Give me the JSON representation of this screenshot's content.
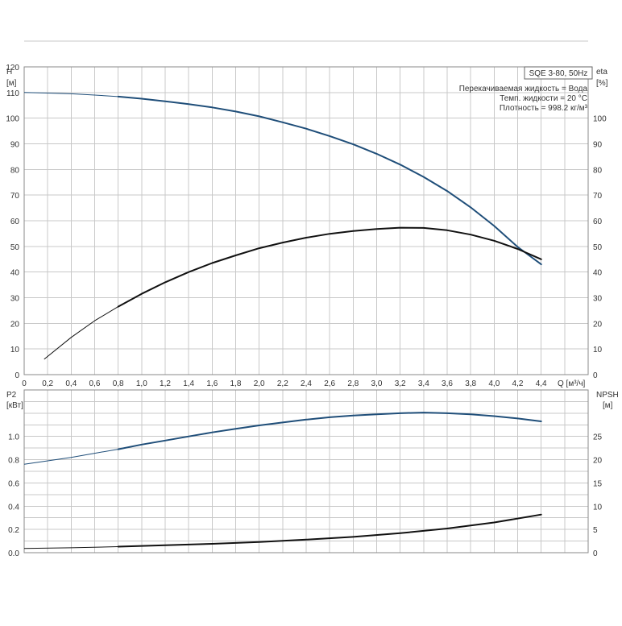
{
  "chart_data": [
    {
      "type": "line",
      "title": "SQE 3-80, 50Hz",
      "annotations": [
        "Перекачиваемая жидкость = Вода",
        "Темп. жидкости = 20 °C",
        "Плотность = 998.2 кг/м³"
      ],
      "xlabel": "Q [м³/ч]",
      "ylabel_left": [
        "H",
        "[м]"
      ],
      "ylabel_right": [
        "eta",
        "[%]"
      ],
      "xlim": [
        0,
        4.8
      ],
      "ylim_left": [
        0,
        120
      ],
      "ylim_right": [
        0,
        120
      ],
      "x_ticks": [
        "0",
        "0,2",
        "0,4",
        "0,6",
        "0,8",
        "1,0",
        "1,2",
        "1,4",
        "1,6",
        "1,8",
        "2,0",
        "2,2",
        "2,4",
        "2,6",
        "2,8",
        "3,0",
        "3,2",
        "3,4",
        "3,6",
        "3,8",
        "4,0",
        "4,2",
        "4,4"
      ],
      "y_ticks_left": [
        "0",
        "10",
        "20",
        "30",
        "40",
        "50",
        "60",
        "70",
        "80",
        "90",
        "100",
        "110",
        "120"
      ],
      "y_ticks_right": [
        "0",
        "10",
        "20",
        "30",
        "40",
        "50",
        "60",
        "70",
        "80",
        "90",
        "100"
      ],
      "grid": true,
      "series": [
        {
          "axis": "left",
          "color": "#1f4e79",
          "values": [
            [
              0,
              110
            ],
            [
              0.2,
              109.8
            ],
            [
              0.4,
              109.5
            ],
            [
              0.6,
              109
            ],
            [
              0.8,
              108.4
            ],
            [
              1.0,
              107.6
            ],
            [
              1.2,
              106.6
            ],
            [
              1.4,
              105.5
            ],
            [
              1.6,
              104.2
            ],
            [
              1.8,
              102.6
            ],
            [
              2.0,
              100.7
            ],
            [
              2.2,
              98.4
            ],
            [
              2.4,
              95.9
            ],
            [
              2.6,
              93
            ],
            [
              2.8,
              89.8
            ],
            [
              3.0,
              86.1
            ],
            [
              3.2,
              81.9
            ],
            [
              3.4,
              77.1
            ],
            [
              3.6,
              71.6
            ],
            [
              3.8,
              65.2
            ],
            [
              4.0,
              58
            ],
            [
              4.2,
              49.8
            ],
            [
              4.4,
              43
            ]
          ]
        },
        {
          "axis": "right",
          "color": "#111111",
          "values": [
            [
              0.17,
              6
            ],
            [
              0.4,
              14.5
            ],
            [
              0.6,
              21
            ],
            [
              0.8,
              26.5
            ],
            [
              1.0,
              31.5
            ],
            [
              1.2,
              36
            ],
            [
              1.4,
              40
            ],
            [
              1.6,
              43.5
            ],
            [
              1.8,
              46.5
            ],
            [
              2.0,
              49.3
            ],
            [
              2.2,
              51.5
            ],
            [
              2.4,
              53.4
            ],
            [
              2.6,
              54.9
            ],
            [
              2.8,
              56
            ],
            [
              3.0,
              56.8
            ],
            [
              3.2,
              57.3
            ],
            [
              3.4,
              57.2
            ],
            [
              3.6,
              56.3
            ],
            [
              3.8,
              54.6
            ],
            [
              4.0,
              52.2
            ],
            [
              4.2,
              49
            ],
            [
              4.4,
              45
            ]
          ]
        }
      ]
    },
    {
      "type": "line",
      "xlabel": "",
      "ylabel_left": [
        "P2",
        "[кВт]"
      ],
      "ylabel_right": [
        "NPSH",
        "[м]"
      ],
      "xlim": [
        0,
        4.8
      ],
      "ylim_left": [
        0,
        1.4
      ],
      "ylim_right": [
        0,
        35
      ],
      "y_ticks_left": [
        "0.0",
        "0.2",
        "0.4",
        "0.6",
        "0.8",
        "1.0"
      ],
      "y_ticks_right": [
        "0",
        "5",
        "10",
        "15",
        "20",
        "25"
      ],
      "grid": true,
      "series": [
        {
          "axis": "left",
          "color": "#1f4e79",
          "values": [
            [
              0,
              0.76
            ],
            [
              0.2,
              0.79
            ],
            [
              0.4,
              0.82
            ],
            [
              0.6,
              0.855
            ],
            [
              0.8,
              0.89
            ],
            [
              1.0,
              0.93
            ],
            [
              1.2,
              0.965
            ],
            [
              1.4,
              1.0
            ],
            [
              1.6,
              1.035
            ],
            [
              1.8,
              1.065
            ],
            [
              2.0,
              1.095
            ],
            [
              2.2,
              1.12
            ],
            [
              2.4,
              1.145
            ],
            [
              2.6,
              1.165
            ],
            [
              2.8,
              1.18
            ],
            [
              3.0,
              1.19
            ],
            [
              3.2,
              1.2
            ],
            [
              3.4,
              1.205
            ],
            [
              3.6,
              1.2
            ],
            [
              3.8,
              1.19
            ],
            [
              4.0,
              1.175
            ],
            [
              4.2,
              1.155
            ],
            [
              4.4,
              1.13
            ]
          ]
        },
        {
          "axis": "right",
          "color": "#111111",
          "values": [
            [
              0,
              0.9
            ],
            [
              0.4,
              1.05
            ],
            [
              0.8,
              1.3
            ],
            [
              1.2,
              1.6
            ],
            [
              1.6,
              1.9
            ],
            [
              2.0,
              2.3
            ],
            [
              2.4,
              2.8
            ],
            [
              2.8,
              3.4
            ],
            [
              3.2,
              4.2
            ],
            [
              3.6,
              5.2
            ],
            [
              4.0,
              6.5
            ],
            [
              4.4,
              8.2
            ]
          ]
        }
      ]
    }
  ]
}
